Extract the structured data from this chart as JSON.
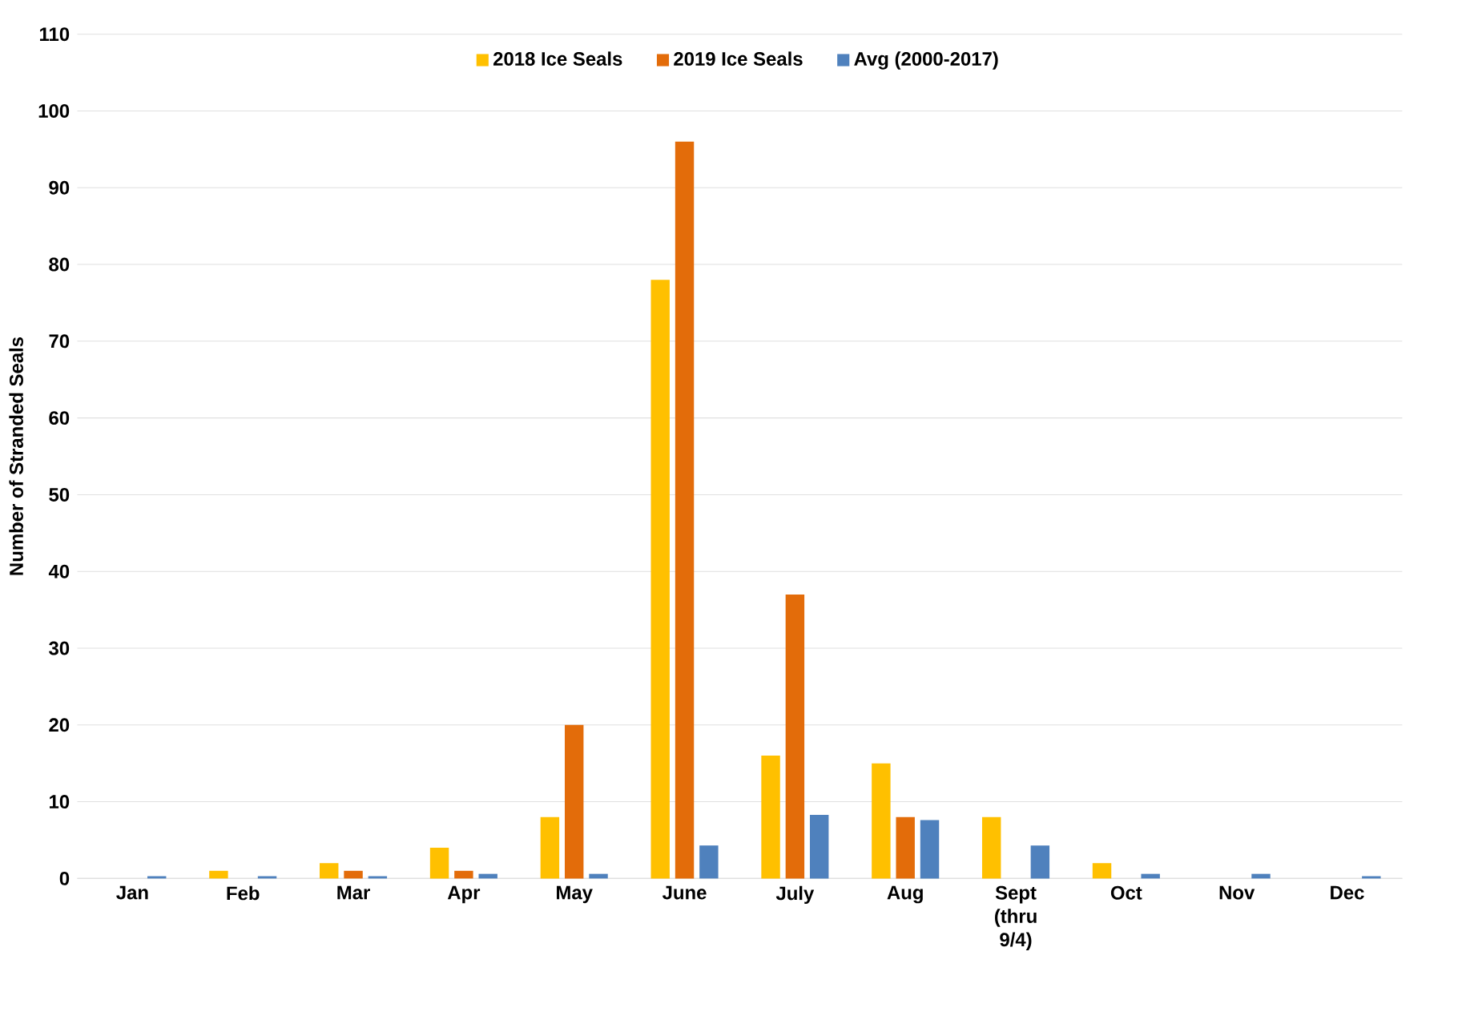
{
  "chart_data": {
    "type": "bar",
    "ylabel": "Number of Stranded Seals",
    "categories": [
      "Jan",
      "Feb",
      "Mar",
      "Apr",
      "May",
      "June",
      "July",
      "Aug",
      "Sept (thru 9/4)",
      "Oct",
      "Nov",
      "Dec"
    ],
    "series": [
      {
        "name": "2018 Ice Seals",
        "color": "#ffc000",
        "values": [
          0,
          1,
          2,
          4,
          8,
          78,
          16,
          15,
          8,
          2,
          0,
          0
        ]
      },
      {
        "name": "2019 Ice Seals",
        "color": "#e36c0a",
        "values": [
          0,
          0,
          1,
          1,
          20,
          96,
          37,
          8,
          null,
          null,
          null,
          null
        ]
      },
      {
        "name": "Avg (2000-2017)",
        "color": "#4f81bd",
        "values": [
          0.3,
          0.3,
          0.3,
          0.6,
          0.6,
          4.3,
          8.3,
          7.6,
          4.3,
          0.6,
          0.6,
          0.3
        ]
      }
    ],
    "ylim": [
      0,
      110
    ],
    "yticks": [
      0,
      10,
      20,
      30,
      40,
      50,
      60,
      70,
      80,
      90,
      100,
      110
    ],
    "grid": "y",
    "legend": "top"
  }
}
